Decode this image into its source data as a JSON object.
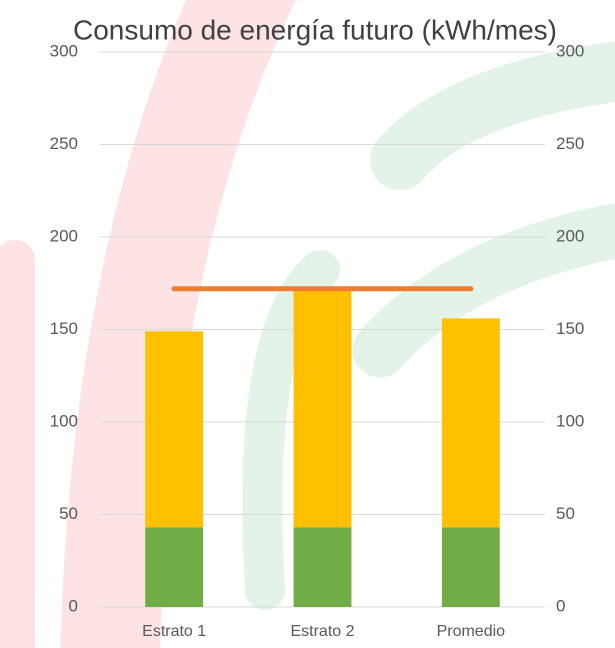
{
  "chart_data": {
    "type": "bar",
    "stacked": true,
    "title": "Consumo de energía futuro (kWh/mes)",
    "categories": [
      "Estrato 1",
      "Estrato 2",
      "Promedio"
    ],
    "series": [
      {
        "color": "#70ad47",
        "values": [
          43,
          43,
          43
        ]
      },
      {
        "color": "#ffc000",
        "values": [
          106,
          130,
          113
        ]
      },
      {
        "type": "line",
        "axis": "y2",
        "color": "#ed7d31",
        "values": [
          172,
          172,
          172
        ]
      }
    ],
    "ylim": [
      0,
      300
    ],
    "yticks": [
      0,
      50,
      100,
      150,
      200,
      250,
      300
    ],
    "y2lim": [
      0,
      300
    ],
    "y2ticks": [
      0,
      50,
      100,
      150,
      200,
      250,
      300
    ],
    "grid": true
  }
}
